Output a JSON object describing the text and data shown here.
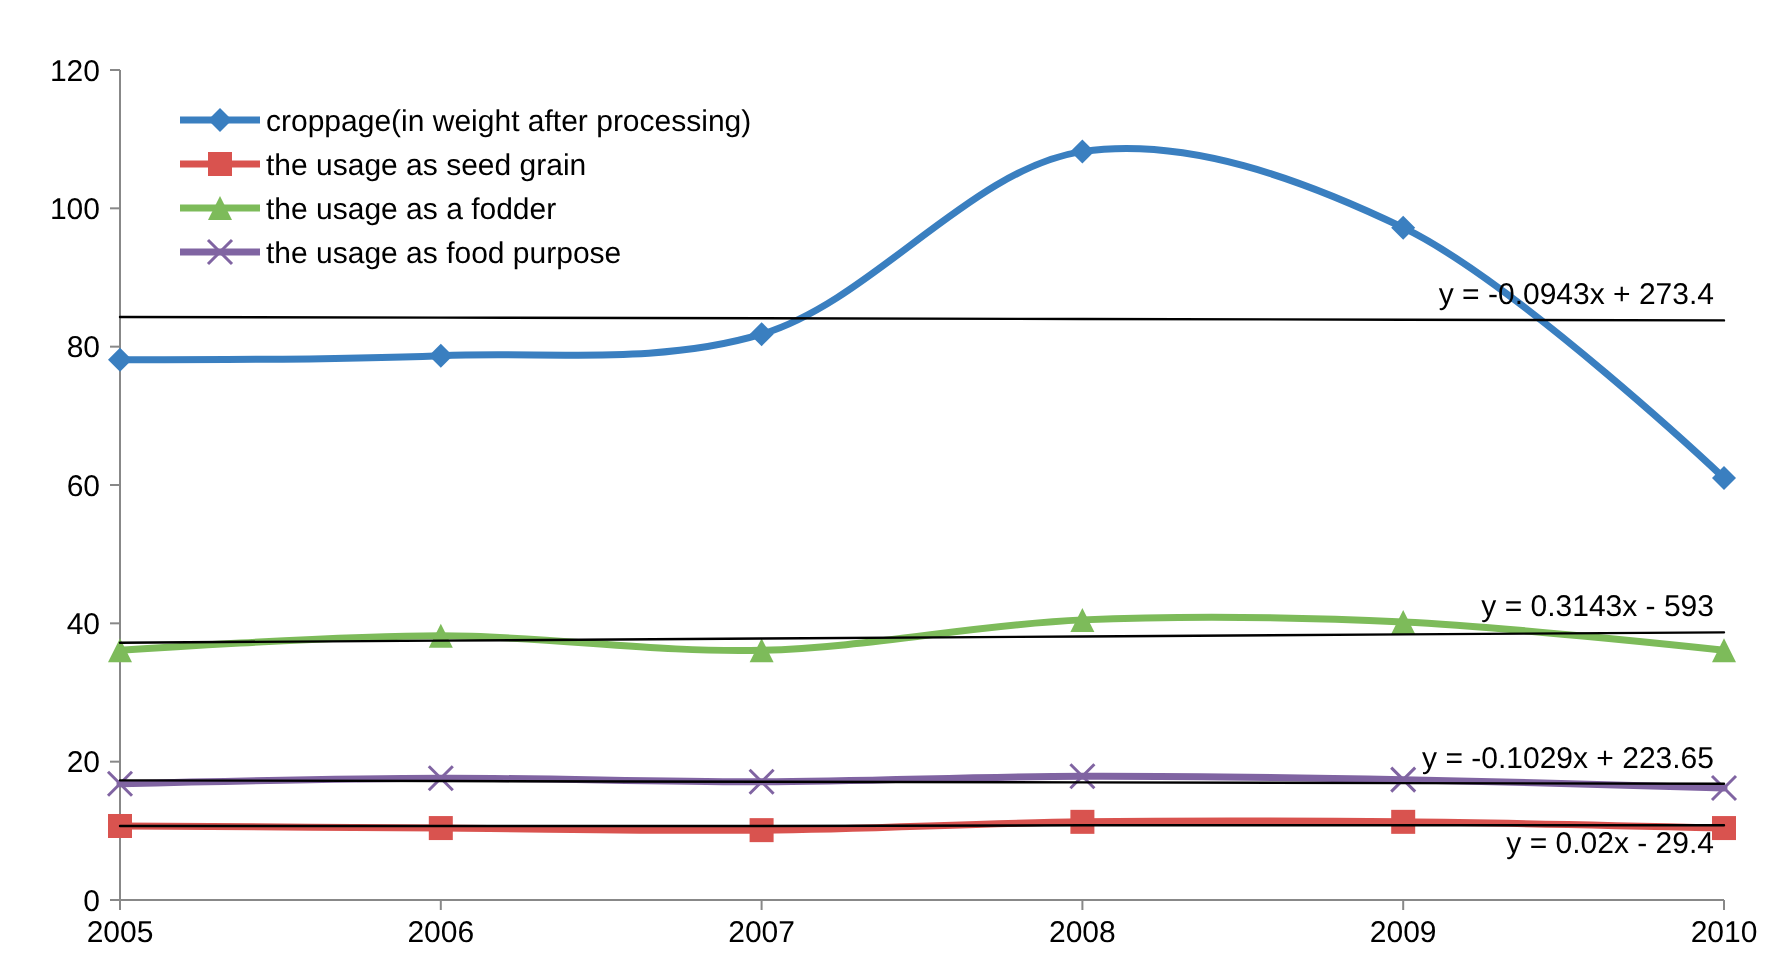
{
  "chart_data": {
    "type": "line",
    "x": [
      2005,
      2006,
      2007,
      2008,
      2009,
      2010
    ],
    "xlim": [
      2005,
      2010
    ],
    "xticks": [
      2005,
      2006,
      2007,
      2008,
      2009,
      2010
    ],
    "ylim": [
      0,
      120
    ],
    "yticks": [
      0,
      20,
      40,
      60,
      80,
      100,
      120
    ],
    "grid": false,
    "legend": "top left",
    "line_style": "solid",
    "series": [
      {
        "name": "croppage(in weight after processing)",
        "color": "#3a7fc0",
        "marker": "diamond",
        "values": [
          78.1,
          78.7,
          81.8,
          108.2,
          97.2,
          61
        ]
      },
      {
        "name": "the usage as seed grain",
        "color": "#d9534f",
        "marker": "square",
        "values": [
          10.7,
          10.4,
          10.1,
          11.3,
          11.3,
          10.4
        ]
      },
      {
        "name": "the usage as a fodder",
        "color": "#7dbb5a",
        "marker": "triangle",
        "values": [
          36.1,
          38.2,
          36.1,
          40.5,
          40.2,
          36.1
        ]
      },
      {
        "name": "the usage as food purpose",
        "color": "#8064a2",
        "marker": "cross",
        "values": [
          16.8,
          17.6,
          17.1,
          17.9,
          17.4,
          16.2
        ]
      },
      {
        "type": "line",
        "name": "y = -0.0943x + 273.4",
        "color": "#000000",
        "marker": "none",
        "values": [
          84.3,
          84.2,
          84.1,
          84,
          83.9,
          83.8
        ]
      },
      {
        "type": "line",
        "name": "y = 0.3143x - 593",
        "color": "#000000",
        "marker": "none",
        "values": [
          37.2,
          37.5,
          37.8,
          38.1,
          38.4,
          38.7
        ]
      },
      {
        "type": "line",
        "name": "y = -0.1029x + 223.65",
        "color": "#000000",
        "marker": "none",
        "values": [
          17.3,
          17.2,
          17.1,
          17,
          16.9,
          16.8
        ]
      },
      {
        "type": "line",
        "name": "y = 0.02x - 29.4",
        "color": "#000000",
        "marker": "none",
        "values": [
          10.7,
          10.7,
          10.7,
          10.8,
          10.8,
          10.8
        ]
      }
    ]
  }
}
